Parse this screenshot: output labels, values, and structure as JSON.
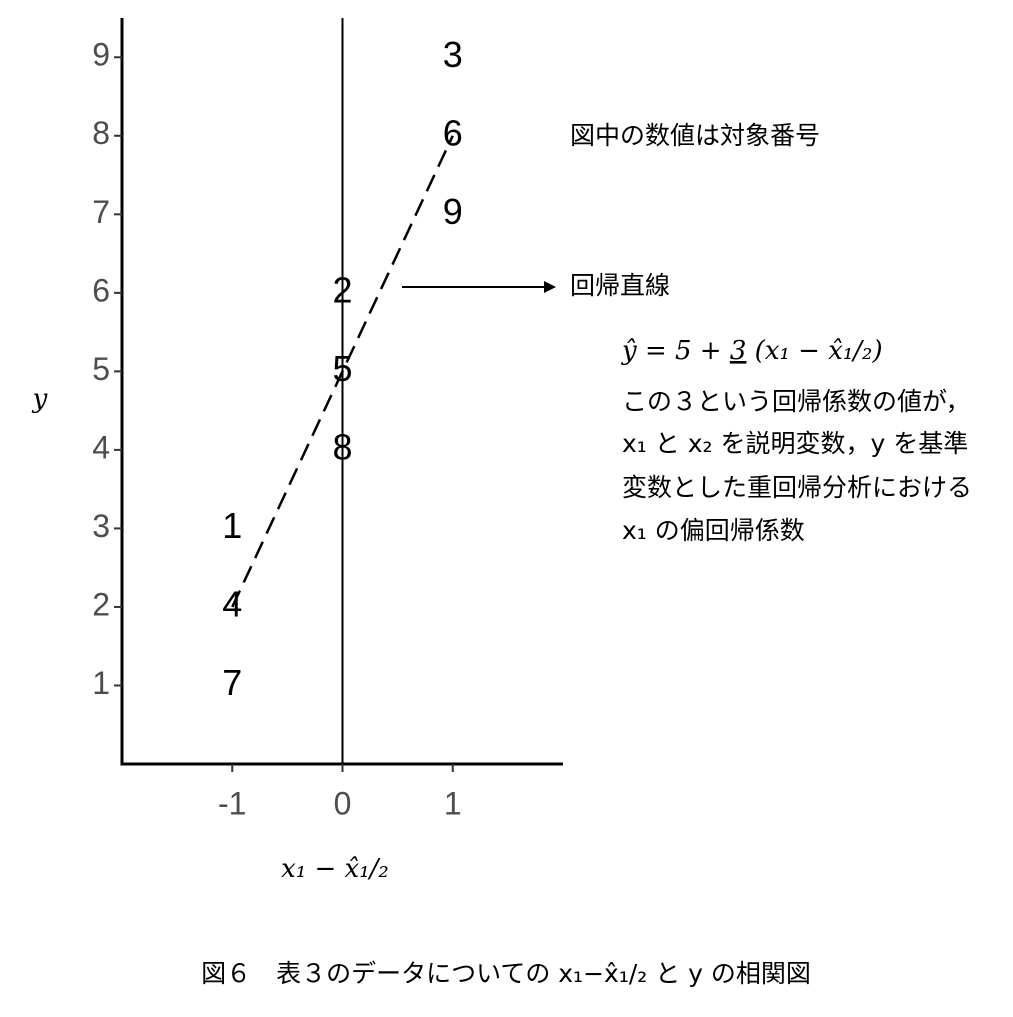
{
  "chart_data": {
    "type": "scatter",
    "x_label": "x₁ − x̂₁/₂",
    "y_label": "y",
    "caption": "図６　表３のデータについての x₁−x̂₁/₂ と y の相関図",
    "xlim": [
      -2,
      2
    ],
    "ylim": [
      0,
      9.5
    ],
    "xticks": [
      -1,
      0,
      1
    ],
    "yticks": [
      1,
      2,
      3,
      4,
      5,
      6,
      7,
      8,
      9
    ],
    "series": [
      {
        "x": [
          1,
          1,
          1,
          0,
          0,
          0,
          -1,
          -1,
          -1
        ],
        "values": [
          9,
          8,
          7,
          6,
          5,
          4,
          3,
          2,
          1
        ],
        "labels": [
          "3",
          "6",
          "9",
          "2",
          "5",
          "8",
          "1",
          "4",
          "7"
        ]
      }
    ],
    "vline": 0,
    "regression": {
      "intercept": 5,
      "slope": 3,
      "x": [
        -1,
        1
      ]
    },
    "annotations": {
      "note": "図中の数値は対象番号",
      "line_label": "回帰直線",
      "equation": [
        "ŷ = 5 + ",
        "3",
        " (x₁ − x̂₁/₂)"
      ],
      "text": [
        "この３という回帰係数の値が，",
        "x₁ と x₂ を説明変数，y を基準",
        "変数とした重回帰分析における",
        "x₁ の偏回帰係数"
      ]
    }
  }
}
